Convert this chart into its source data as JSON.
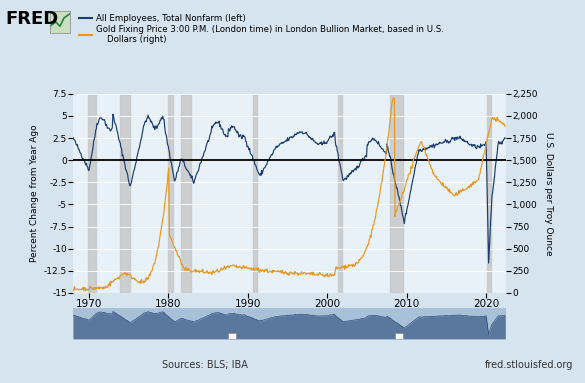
{
  "legend_blue": "All Employees, Total Nonfarm (left)",
  "legend_orange": "Gold Fixing Price 3:00 P.M. (London time) in London Bullion Market, based in U.S.\n    Dollars (right)",
  "ylabel_left": "Percent Change from Year Ago",
  "ylabel_right": "U.S. Dollars per Troy Ounce",
  "source_left": "Sources: BLS; IBA",
  "source_right": "fred.stlouisfed.org",
  "bg_color": "#d6e4f0",
  "plot_bg_color": "#e8f0f8",
  "mini_bg_color": "#a8c0d8",
  "blue_color": "#1a3d6e",
  "orange_color": "#e89820",
  "recession_color": "#c8c8c8",
  "zero_line_color": "#000000",
  "grid_color": "#ffffff",
  "ylim_left": [
    -15.0,
    7.5
  ],
  "ylim_right": [
    0,
    2250
  ],
  "xlim": [
    1968.0,
    2022.5
  ],
  "yticks_left": [
    -15.0,
    -12.5,
    -10.0,
    -7.5,
    -5.0,
    -2.5,
    0.0,
    2.5,
    5.0,
    7.5
  ],
  "yticks_right": [
    0,
    250,
    500,
    750,
    1000,
    1250,
    1500,
    1750,
    2000,
    2250
  ],
  "xticks": [
    1970,
    1980,
    1990,
    2000,
    2010,
    2020
  ],
  "recession_bands": [
    [
      1969.9,
      1970.9
    ],
    [
      1973.9,
      1975.2
    ],
    [
      1980.0,
      1980.6
    ],
    [
      1981.6,
      1982.9
    ],
    [
      1990.6,
      1991.2
    ],
    [
      2001.3,
      2001.9
    ],
    [
      2007.9,
      2009.5
    ],
    [
      2020.1,
      2020.6
    ]
  ]
}
